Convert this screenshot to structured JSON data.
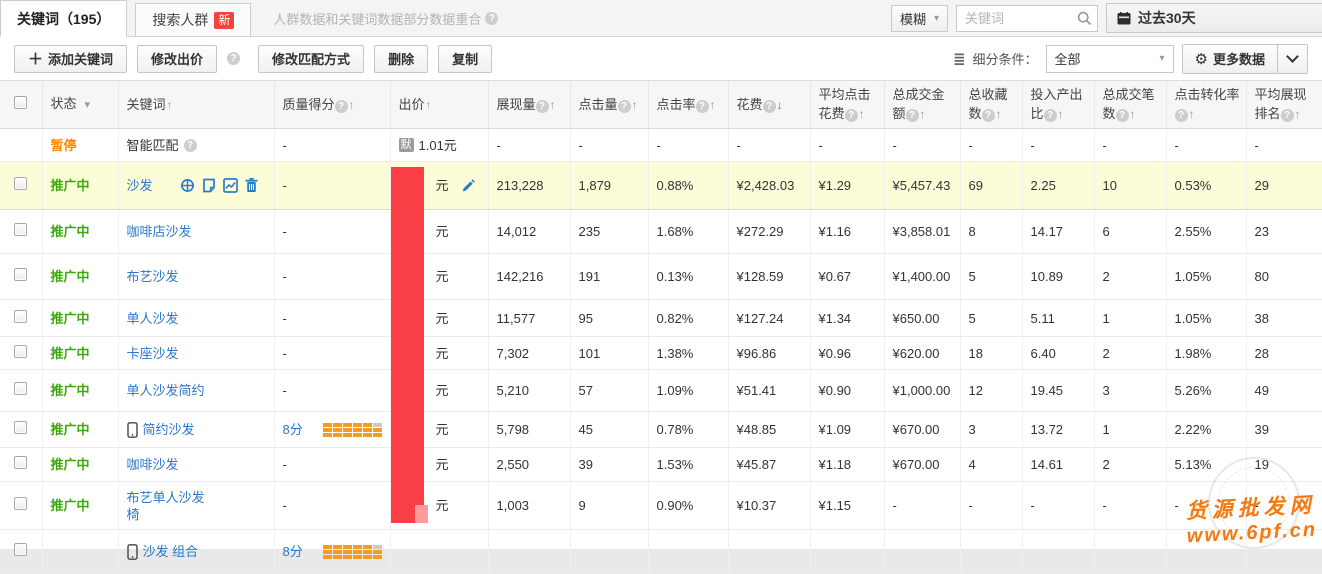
{
  "tabs": {
    "keywords": "关键词（195）",
    "audience": "搜索人群",
    "audience_badge": "新",
    "note": "人群数据和关键词数据部分数据重合"
  },
  "filters": {
    "fuzzy_label": "模糊",
    "search_placeholder": "关键词",
    "date_label": "过去30天"
  },
  "toolbar": {
    "add_label": "添加关键词",
    "edit_bid_label": "修改出价",
    "edit_match_label": "修改匹配方式",
    "delete_label": "删除",
    "copy_label": "复制",
    "segment_label": "细分条件：",
    "segment_value": "全部",
    "more_data_label": "更多数据"
  },
  "watermark": {
    "line1": "货源批发网",
    "line2": "www.6pf.cn"
  },
  "table": {
    "columns": [
      {
        "key": "status",
        "label": "状态",
        "filter": true
      },
      {
        "key": "keyword",
        "label": "关键词",
        "sort": "up"
      },
      {
        "key": "quality",
        "label": "质量得分",
        "help": true,
        "sort": "up"
      },
      {
        "key": "bid",
        "label": "出价",
        "sort": "up"
      },
      {
        "key": "impressions",
        "label": "展现量",
        "help": true,
        "sort": "up"
      },
      {
        "key": "clicks",
        "label": "点击量",
        "help": true,
        "sort": "up"
      },
      {
        "key": "ctr",
        "label": "点击率",
        "help": true,
        "sort": "up"
      },
      {
        "key": "cost",
        "label": "花费",
        "help": true,
        "sort": "down-active"
      },
      {
        "key": "avg_cost",
        "label": "平均点击花费",
        "help": true,
        "sort": "up"
      },
      {
        "key": "total_amount",
        "label": "总成交金额",
        "help": true,
        "sort": "up"
      },
      {
        "key": "favorites",
        "label": "总收藏数",
        "help": true,
        "sort": "up"
      },
      {
        "key": "roi",
        "label": "投入产出比",
        "help": true,
        "sort": "up"
      },
      {
        "key": "orders",
        "label": "总成交笔数",
        "help": true,
        "sort": "up"
      },
      {
        "key": "conv_rate",
        "label": "点击转化率",
        "help": true,
        "sort": "up"
      },
      {
        "key": "avg_rank",
        "label": "平均展现排名",
        "help": true,
        "sort": "up"
      }
    ],
    "rows": [
      {
        "status": "暂停",
        "status_type": "paused",
        "keyword": "智能匹配",
        "keyword_help": true,
        "link": false,
        "checkbox": false,
        "quality": "-",
        "bid": {
          "redacted": false,
          "badge": "默",
          "value": "1.01元"
        },
        "impressions": "-",
        "clicks": "-",
        "ctr": "-",
        "cost": "-",
        "avg_cost": "-",
        "total_amount": "-",
        "favorites": "-",
        "roi": "-",
        "orders": "-",
        "conv_rate": "-",
        "avg_rank": "-",
        "height": 33
      },
      {
        "status": "推广中",
        "status_type": "active",
        "keyword": "沙发",
        "checkbox": true,
        "highlight": true,
        "actions": [
          "target-icon",
          "report-icon",
          "trend-icon",
          "trash-icon"
        ],
        "quality": "-",
        "bid": {
          "redacted": true,
          "suffix": "元",
          "editable": true
        },
        "impressions": "213,228",
        "clicks": "1,879",
        "ctr": "0.88%",
        "cost": "¥2,428.03",
        "avg_cost": "¥1.29",
        "total_amount": "¥5,457.43",
        "favorites": "69",
        "roi": "2.25",
        "orders": "10",
        "conv_rate": "0.53%",
        "avg_rank": "29",
        "height": 48
      },
      {
        "status": "推广中",
        "status_type": "active",
        "keyword": "咖啡店沙发",
        "checkbox": true,
        "quality": "-",
        "bid": {
          "redacted": true,
          "suffix": "元"
        },
        "impressions": "14,012",
        "clicks": "235",
        "ctr": "1.68%",
        "cost": "¥272.29",
        "avg_cost": "¥1.16",
        "total_amount": "¥3,858.01",
        "favorites": "8",
        "roi": "14.17",
        "orders": "6",
        "conv_rate": "2.55%",
        "avg_rank": "23",
        "height": 44
      },
      {
        "status": "推广中",
        "status_type": "active",
        "keyword": "布艺沙发",
        "checkbox": true,
        "quality": "-",
        "bid": {
          "redacted": true,
          "suffix": "元"
        },
        "impressions": "142,216",
        "clicks": "191",
        "ctr": "0.13%",
        "cost": "¥128.59",
        "avg_cost": "¥0.67",
        "total_amount": "¥1,400.00",
        "favorites": "5",
        "roi": "10.89",
        "orders": "2",
        "conv_rate": "1.05%",
        "avg_rank": "80",
        "height": 46
      },
      {
        "status": "推广中",
        "status_type": "active",
        "keyword": "单人沙发",
        "checkbox": true,
        "quality": "-",
        "bid": {
          "redacted": true,
          "suffix": "元"
        },
        "impressions": "11,577",
        "clicks": "95",
        "ctr": "0.82%",
        "cost": "¥127.24",
        "avg_cost": "¥1.34",
        "total_amount": "¥650.00",
        "favorites": "5",
        "roi": "5.11",
        "orders": "1",
        "conv_rate": "1.05%",
        "avg_rank": "38",
        "height": 37
      },
      {
        "status": "推广中",
        "status_type": "active",
        "keyword": "卡座沙发",
        "checkbox": true,
        "quality": "-",
        "bid": {
          "redacted": true,
          "suffix": "元"
        },
        "impressions": "7,302",
        "clicks": "101",
        "ctr": "1.38%",
        "cost": "¥96.86",
        "avg_cost": "¥0.96",
        "total_amount": "¥620.00",
        "favorites": "18",
        "roi": "6.40",
        "orders": "2",
        "conv_rate": "1.98%",
        "avg_rank": "28",
        "height": 33
      },
      {
        "status": "推广中",
        "status_type": "active",
        "keyword": "单人沙发简约",
        "checkbox": true,
        "quality": "-",
        "bid": {
          "redacted": true,
          "suffix": "元"
        },
        "impressions": "5,210",
        "clicks": "57",
        "ctr": "1.09%",
        "cost": "¥51.41",
        "avg_cost": "¥0.90",
        "total_amount": "¥1,000.00",
        "favorites": "12",
        "roi": "19.45",
        "orders": "3",
        "conv_rate": "5.26%",
        "avg_rank": "49",
        "height": 42
      },
      {
        "status": "推广中",
        "status_type": "active",
        "keyword": "简约沙发",
        "mobile": true,
        "checkbox": true,
        "quality": "8分",
        "quality_bars": true,
        "bid": {
          "redacted": true,
          "suffix": "元"
        },
        "impressions": "5,798",
        "clicks": "45",
        "ctr": "0.78%",
        "cost": "¥48.85",
        "avg_cost": "¥1.09",
        "total_amount": "¥670.00",
        "favorites": "3",
        "roi": "13.72",
        "orders": "1",
        "conv_rate": "2.22%",
        "avg_rank": "39",
        "height": 36
      },
      {
        "status": "推广中",
        "status_type": "active",
        "keyword": "咖啡沙发",
        "checkbox": true,
        "quality": "-",
        "bid": {
          "redacted": true,
          "suffix": "元"
        },
        "impressions": "2,550",
        "clicks": "39",
        "ctr": "1.53%",
        "cost": "¥45.87",
        "avg_cost": "¥1.18",
        "total_amount": "¥670.00",
        "favorites": "4",
        "roi": "14.61",
        "orders": "2",
        "conv_rate": "5.13%",
        "avg_rank": "19",
        "height": 34
      },
      {
        "status": "推广中",
        "status_type": "active",
        "keyword": "布艺单人沙发椅",
        "checkbox": true,
        "quality": "-",
        "bid": {
          "redacted": true,
          "suffix": "元"
        },
        "impressions": "1,003",
        "clicks": "9",
        "ctr": "0.90%",
        "cost": "¥10.37",
        "avg_cost": "¥1.15",
        "total_amount": "-",
        "favorites": "-",
        "roi": "-",
        "orders": "-",
        "conv_rate": "-",
        "avg_rank": "-",
        "height": 48
      },
      {
        "status": "",
        "status_type": "active",
        "keyword": "沙发 组合",
        "mobile": true,
        "checkbox": true,
        "quality": "8分",
        "quality_bars": true,
        "bid": {
          "redacted": false,
          "value": ""
        },
        "impressions": "",
        "clicks": "",
        "ctr": "",
        "cost": "",
        "avg_cost": "",
        "total_amount": "",
        "favorites": "",
        "roi": "",
        "orders": "",
        "conv_rate": "",
        "avg_rank": "",
        "height": 44
      }
    ]
  }
}
